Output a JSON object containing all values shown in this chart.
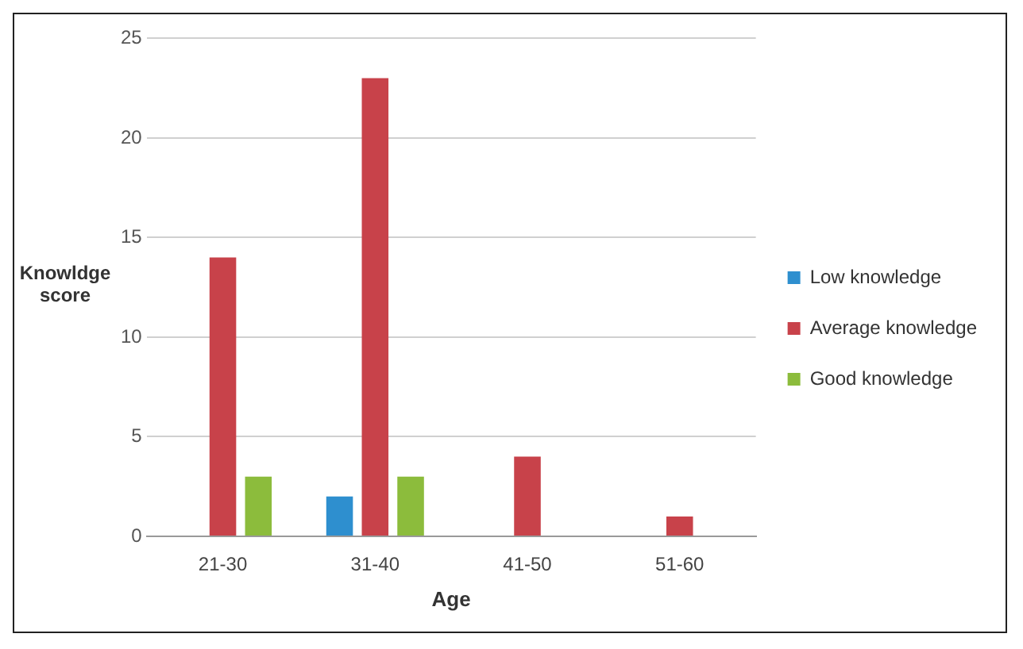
{
  "chart_data": {
    "type": "bar",
    "xlabel": "Age",
    "ylabel": "Knowldge score",
    "categories": [
      "21-30",
      "31-40",
      "41-50",
      "51-60"
    ],
    "series": [
      {
        "name": "Low knowledge",
        "color": "#2e8fcf",
        "values": [
          0,
          2,
          0,
          0
        ]
      },
      {
        "name": "Average knowledge",
        "color": "#c8424a",
        "values": [
          14,
          23,
          4,
          1
        ]
      },
      {
        "name": "Good knowledge",
        "color": "#8cbc3c",
        "values": [
          3,
          3,
          0,
          0
        ]
      }
    ],
    "ylim": [
      0,
      25
    ],
    "yticks": [
      0,
      5,
      10,
      15,
      20,
      25
    ],
    "grid": "y",
    "legend": "right"
  }
}
